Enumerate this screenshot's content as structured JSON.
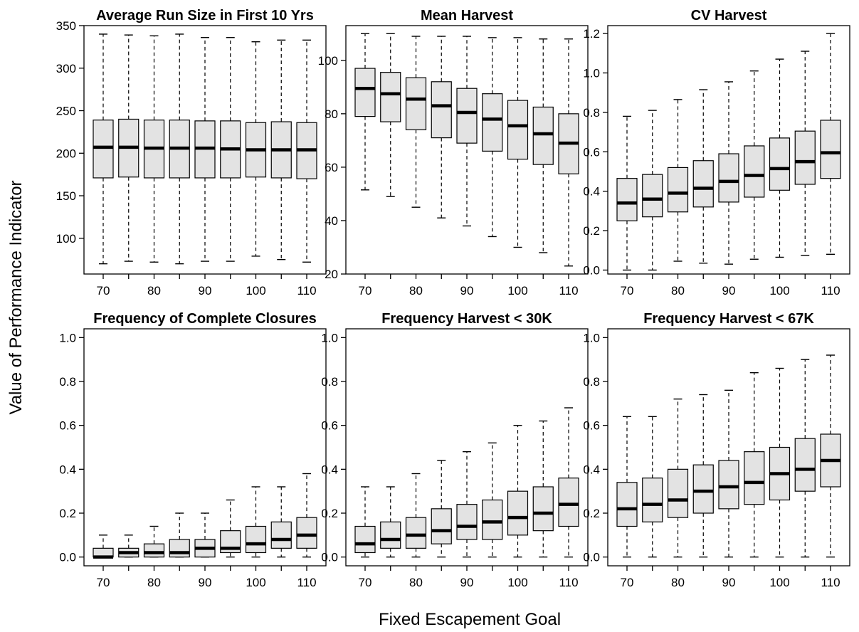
{
  "figure": {
    "xlabel": "Fixed Escapement Goal",
    "ylabel": "Value of Performance Indicator"
  },
  "chart_data": [
    {
      "type": "box",
      "title": "Average Run Size in First 10 Yrs",
      "x": [
        70,
        75,
        80,
        85,
        90,
        95,
        100,
        105,
        110
      ],
      "x_tick_labels": [
        "70",
        "80",
        "90",
        "100",
        "110"
      ],
      "y_ticks": [
        100,
        150,
        200,
        250,
        300,
        350
      ],
      "ylim": [
        58,
        350
      ],
      "boxes": [
        {
          "min": 70,
          "q1": 171,
          "median": 207,
          "q3": 239,
          "max": 340
        },
        {
          "min": 73,
          "q1": 172,
          "median": 207,
          "q3": 240,
          "max": 339
        },
        {
          "min": 72,
          "q1": 171,
          "median": 206,
          "q3": 239,
          "max": 338
        },
        {
          "min": 70,
          "q1": 171,
          "median": 206,
          "q3": 239,
          "max": 340
        },
        {
          "min": 73,
          "q1": 171,
          "median": 206,
          "q3": 238,
          "max": 336
        },
        {
          "min": 73,
          "q1": 171,
          "median": 205,
          "q3": 238,
          "max": 336
        },
        {
          "min": 79,
          "q1": 172,
          "median": 204,
          "q3": 236,
          "max": 331
        },
        {
          "min": 75,
          "q1": 171,
          "median": 204,
          "q3": 237,
          "max": 333
        },
        {
          "min": 72,
          "q1": 170,
          "median": 204,
          "q3": 236,
          "max": 333
        }
      ]
    },
    {
      "type": "box",
      "title": "Mean Harvest",
      "x": [
        70,
        75,
        80,
        85,
        90,
        95,
        100,
        105,
        110
      ],
      "x_tick_labels": [
        "70",
        "80",
        "90",
        "100",
        "110"
      ],
      "y_ticks": [
        20,
        40,
        60,
        80,
        100
      ],
      "ylim": [
        20,
        113
      ],
      "boxes": [
        {
          "min": 51.5,
          "q1": 79,
          "median": 89.5,
          "q3": 97,
          "max": 110
        },
        {
          "min": 49,
          "q1": 77,
          "median": 87.5,
          "q3": 95.5,
          "max": 110
        },
        {
          "min": 45,
          "q1": 74,
          "median": 85.5,
          "q3": 93.5,
          "max": 109
        },
        {
          "min": 41,
          "q1": 71,
          "median": 83,
          "q3": 92,
          "max": 109
        },
        {
          "min": 38,
          "q1": 69,
          "median": 80.5,
          "q3": 89.5,
          "max": 109
        },
        {
          "min": 34,
          "q1": 66,
          "median": 78,
          "q3": 87.5,
          "max": 108.5
        },
        {
          "min": 30,
          "q1": 63,
          "median": 75.5,
          "q3": 85,
          "max": 108.5
        },
        {
          "min": 28,
          "q1": 61,
          "median": 72.5,
          "q3": 82.5,
          "max": 108
        },
        {
          "min": 23,
          "q1": 57.5,
          "median": 69,
          "q3": 80,
          "max": 108
        }
      ]
    },
    {
      "type": "box",
      "title": "CV Harvest",
      "x": [
        70,
        75,
        80,
        85,
        90,
        95,
        100,
        105,
        110
      ],
      "x_tick_labels": [
        "70",
        "80",
        "90",
        "100",
        "110"
      ],
      "y_ticks": [
        0.0,
        0.2,
        0.4,
        0.6,
        0.8,
        1.0,
        1.2
      ],
      "y_tick_labels": [
        "0.0",
        "0.2",
        "0.4",
        "0.6",
        "0.8",
        "1.0",
        "1.2"
      ],
      "ylim": [
        -0.02,
        1.24
      ],
      "boxes": [
        {
          "min": 0.0,
          "q1": 0.25,
          "median": 0.34,
          "q3": 0.465,
          "max": 0.78
        },
        {
          "min": 0.0,
          "q1": 0.27,
          "median": 0.36,
          "q3": 0.485,
          "max": 0.81
        },
        {
          "min": 0.045,
          "q1": 0.295,
          "median": 0.39,
          "q3": 0.52,
          "max": 0.865
        },
        {
          "min": 0.035,
          "q1": 0.32,
          "median": 0.415,
          "q3": 0.555,
          "max": 0.915
        },
        {
          "min": 0.03,
          "q1": 0.345,
          "median": 0.45,
          "q3": 0.59,
          "max": 0.955
        },
        {
          "min": 0.055,
          "q1": 0.37,
          "median": 0.48,
          "q3": 0.63,
          "max": 1.01
        },
        {
          "min": 0.065,
          "q1": 0.405,
          "median": 0.515,
          "q3": 0.67,
          "max": 1.07
        },
        {
          "min": 0.075,
          "q1": 0.435,
          "median": 0.55,
          "q3": 0.705,
          "max": 1.11
        },
        {
          "min": 0.08,
          "q1": 0.465,
          "median": 0.595,
          "q3": 0.76,
          "max": 1.2
        }
      ]
    },
    {
      "type": "box",
      "title": "Frequency of Complete Closures",
      "x": [
        70,
        75,
        80,
        85,
        90,
        95,
        100,
        105,
        110
      ],
      "x_tick_labels": [
        "70",
        "80",
        "90",
        "100",
        "110"
      ],
      "y_ticks": [
        0.0,
        0.2,
        0.4,
        0.6,
        0.8,
        1.0
      ],
      "y_tick_labels": [
        "0.0",
        "0.2",
        "0.4",
        "0.6",
        "0.8",
        "1.0"
      ],
      "ylim": [
        -0.04,
        1.04
      ],
      "boxes": [
        {
          "min": 0.0,
          "q1": 0.0,
          "median": 0.0,
          "q3": 0.04,
          "max": 0.1
        },
        {
          "min": 0.0,
          "q1": 0.0,
          "median": 0.02,
          "q3": 0.04,
          "max": 0.1
        },
        {
          "min": 0.0,
          "q1": 0.0,
          "median": 0.02,
          "q3": 0.06,
          "max": 0.14
        },
        {
          "min": 0.0,
          "q1": 0.0,
          "median": 0.02,
          "q3": 0.08,
          "max": 0.2
        },
        {
          "min": 0.0,
          "q1": 0.0,
          "median": 0.04,
          "q3": 0.08,
          "max": 0.2
        },
        {
          "min": 0.0,
          "q1": 0.02,
          "median": 0.04,
          "q3": 0.12,
          "max": 0.26
        },
        {
          "min": 0.0,
          "q1": 0.02,
          "median": 0.06,
          "q3": 0.14,
          "max": 0.32
        },
        {
          "min": 0.0,
          "q1": 0.04,
          "median": 0.08,
          "q3": 0.16,
          "max": 0.32
        },
        {
          "min": 0.0,
          "q1": 0.04,
          "median": 0.1,
          "q3": 0.18,
          "max": 0.38
        }
      ]
    },
    {
      "type": "box",
      "title": "Frequency Harvest < 30K",
      "x": [
        70,
        75,
        80,
        85,
        90,
        95,
        100,
        105,
        110
      ],
      "x_tick_labels": [
        "70",
        "80",
        "90",
        "100",
        "110"
      ],
      "y_ticks": [
        0.0,
        0.2,
        0.4,
        0.6,
        0.8,
        1.0
      ],
      "y_tick_labels": [
        "0.0",
        "0.2",
        "0.4",
        "0.6",
        "0.8",
        "1.0"
      ],
      "ylim": [
        -0.04,
        1.04
      ],
      "boxes": [
        {
          "min": 0.0,
          "q1": 0.02,
          "median": 0.06,
          "q3": 0.14,
          "max": 0.32
        },
        {
          "min": 0.0,
          "q1": 0.04,
          "median": 0.08,
          "q3": 0.16,
          "max": 0.32
        },
        {
          "min": 0.0,
          "q1": 0.04,
          "median": 0.1,
          "q3": 0.18,
          "max": 0.38
        },
        {
          "min": 0.0,
          "q1": 0.06,
          "median": 0.12,
          "q3": 0.22,
          "max": 0.44
        },
        {
          "min": 0.0,
          "q1": 0.08,
          "median": 0.14,
          "q3": 0.24,
          "max": 0.48
        },
        {
          "min": 0.0,
          "q1": 0.08,
          "median": 0.16,
          "q3": 0.26,
          "max": 0.52
        },
        {
          "min": 0.0,
          "q1": 0.1,
          "median": 0.18,
          "q3": 0.3,
          "max": 0.6
        },
        {
          "min": 0.0,
          "q1": 0.12,
          "median": 0.2,
          "q3": 0.32,
          "max": 0.62
        },
        {
          "min": 0.0,
          "q1": 0.14,
          "median": 0.24,
          "q3": 0.36,
          "max": 0.68
        }
      ]
    },
    {
      "type": "box",
      "title": "Frequency Harvest < 67K",
      "x": [
        70,
        75,
        80,
        85,
        90,
        95,
        100,
        105,
        110
      ],
      "x_tick_labels": [
        "70",
        "80",
        "90",
        "100",
        "110"
      ],
      "y_ticks": [
        0.0,
        0.2,
        0.4,
        0.6,
        0.8,
        1.0
      ],
      "y_tick_labels": [
        "0.0",
        "0.2",
        "0.4",
        "0.6",
        "0.8",
        "1.0"
      ],
      "ylim": [
        -0.04,
        1.04
      ],
      "boxes": [
        {
          "min": 0.0,
          "q1": 0.14,
          "median": 0.22,
          "q3": 0.34,
          "max": 0.64
        },
        {
          "min": 0.0,
          "q1": 0.16,
          "median": 0.24,
          "q3": 0.36,
          "max": 0.64
        },
        {
          "min": 0.0,
          "q1": 0.18,
          "median": 0.26,
          "q3": 0.4,
          "max": 0.72
        },
        {
          "min": 0.0,
          "q1": 0.2,
          "median": 0.3,
          "q3": 0.42,
          "max": 0.74
        },
        {
          "min": 0.0,
          "q1": 0.22,
          "median": 0.32,
          "q3": 0.44,
          "max": 0.76
        },
        {
          "min": 0.0,
          "q1": 0.24,
          "median": 0.34,
          "q3": 0.48,
          "max": 0.84
        },
        {
          "min": 0.0,
          "q1": 0.26,
          "median": 0.38,
          "q3": 0.5,
          "max": 0.86
        },
        {
          "min": 0.0,
          "q1": 0.3,
          "median": 0.4,
          "q3": 0.54,
          "max": 0.9
        },
        {
          "min": 0.0,
          "q1": 0.32,
          "median": 0.44,
          "q3": 0.56,
          "max": 0.92
        }
      ]
    }
  ]
}
